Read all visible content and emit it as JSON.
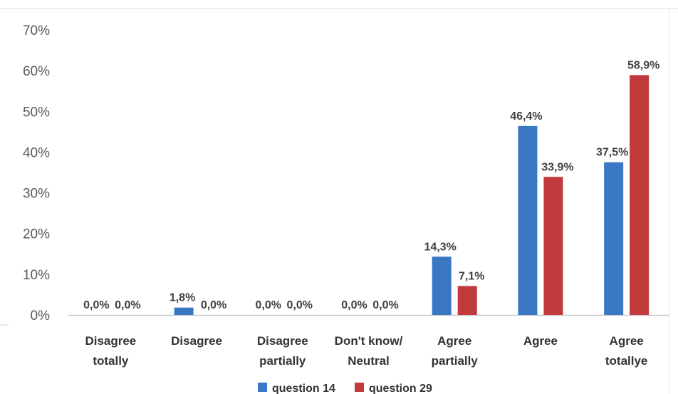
{
  "chart_data": {
    "type": "bar",
    "title": "",
    "xlabel": "",
    "ylabel": "",
    "ylim": [
      0,
      0.7
    ],
    "y_tick_labels": [
      "0%",
      "10%",
      "20%",
      "30%",
      "40%",
      "50%",
      "60%",
      "70%"
    ],
    "grid": false,
    "legend_position": "bottom",
    "categories": [
      [
        "Disagree",
        "totally"
      ],
      [
        "Disagree"
      ],
      [
        "Disagree",
        "partially"
      ],
      [
        "Don't know/",
        "Neutral"
      ],
      [
        "Agree",
        "partially"
      ],
      [
        "Agree"
      ],
      [
        "Agree",
        "totallye"
      ]
    ],
    "series": [
      {
        "name": "question 14",
        "color": "#3b78c4",
        "values": [
          0.0,
          0.018,
          0.0,
          0.0,
          0.143,
          0.464,
          0.375
        ],
        "labels": [
          "0,0%",
          "1,8%",
          "0,0%",
          "0,0%",
          "14,3%",
          "46,4%",
          "37,5%"
        ]
      },
      {
        "name": "question 29",
        "color": "#c0393b",
        "values": [
          0.0,
          0.0,
          0.0,
          0.0,
          0.071,
          0.339,
          0.589
        ],
        "labels": [
          "0,0%",
          "0,0%",
          "0,0%",
          "0,0%",
          "7,1%",
          "33,9%",
          "58,9%"
        ]
      }
    ]
  }
}
